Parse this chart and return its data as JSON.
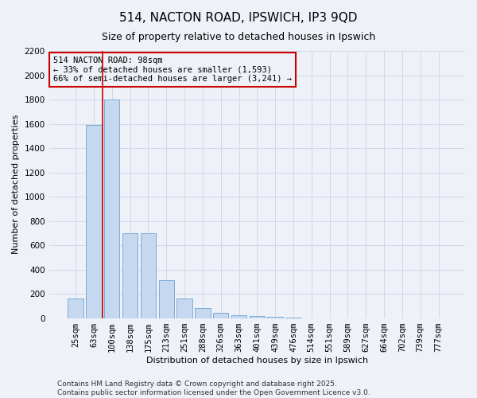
{
  "title": "514, NACTON ROAD, IPSWICH, IP3 9QD",
  "subtitle": "Size of property relative to detached houses in Ipswich",
  "xlabel": "Distribution of detached houses by size in Ipswich",
  "ylabel": "Number of detached properties",
  "categories": [
    "25sqm",
    "63sqm",
    "100sqm",
    "138sqm",
    "175sqm",
    "213sqm",
    "251sqm",
    "288sqm",
    "326sqm",
    "363sqm",
    "401sqm",
    "439sqm",
    "476sqm",
    "514sqm",
    "551sqm",
    "589sqm",
    "627sqm",
    "664sqm",
    "702sqm",
    "739sqm",
    "777sqm"
  ],
  "values": [
    160,
    1590,
    1800,
    700,
    700,
    310,
    160,
    80,
    45,
    25,
    15,
    8,
    3,
    0,
    0,
    0,
    0,
    0,
    0,
    0,
    0
  ],
  "bar_color": "#c5d8f0",
  "bar_edge_color": "#7aadd4",
  "vline_color": "#cc0000",
  "annotation_text": "514 NACTON ROAD: 98sqm\n← 33% of detached houses are smaller (1,593)\n66% of semi-detached houses are larger (3,241) →",
  "annotation_box_color": "#cc0000",
  "ylim": [
    0,
    2200
  ],
  "yticks": [
    0,
    200,
    400,
    600,
    800,
    1000,
    1200,
    1400,
    1600,
    1800,
    2000,
    2200
  ],
  "footer1": "Contains HM Land Registry data © Crown copyright and database right 2025.",
  "footer2": "Contains public sector information licensed under the Open Government Licence v3.0.",
  "background_color": "#eef2f8",
  "grid_color": "#d0d8e8",
  "title_fontsize": 11,
  "subtitle_fontsize": 9,
  "axis_label_fontsize": 8,
  "tick_fontsize": 7.5,
  "footer_fontsize": 6.5
}
